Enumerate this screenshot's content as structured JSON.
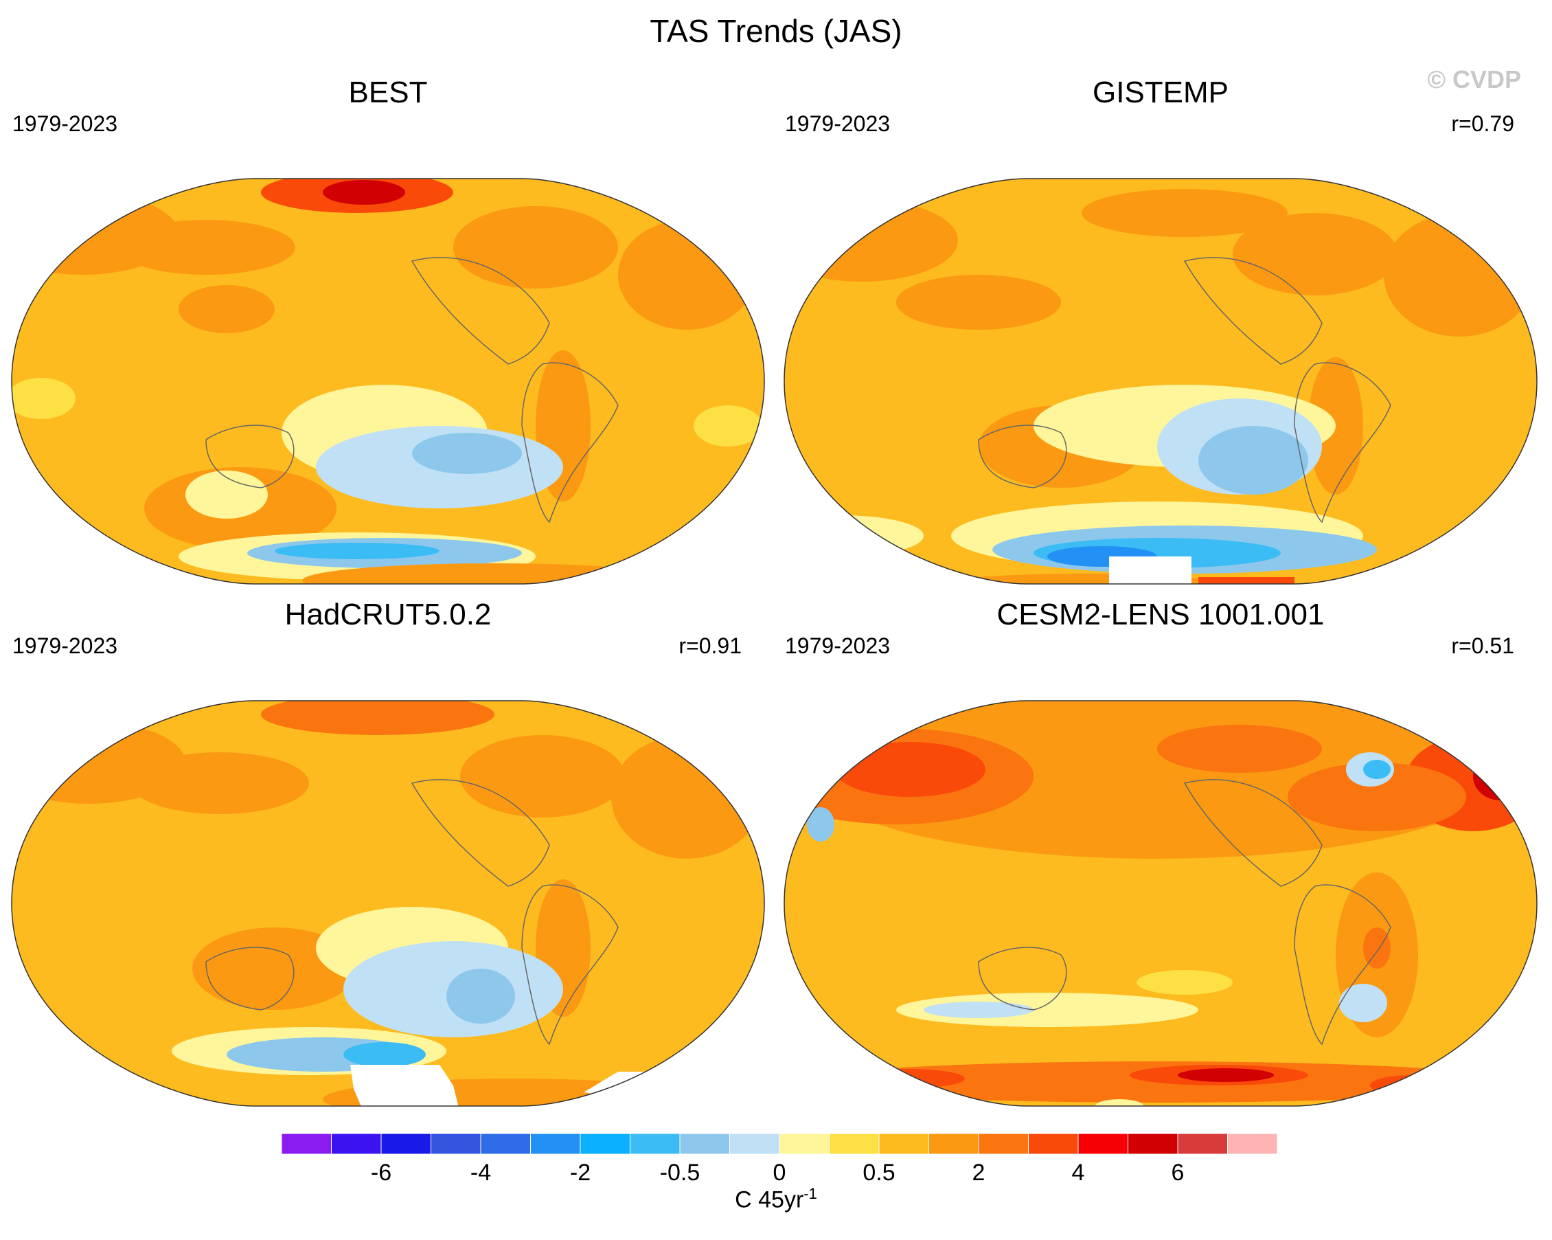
{
  "title": "TAS Trends (JAS)",
  "copyright": "© CVDP",
  "colors": {
    "ocean_base": "#fdbb20",
    "land_outline": "#666666",
    "map_border": "#333333"
  },
  "panels": [
    {
      "title": "BEST",
      "period": "1979-2023",
      "corr": ""
    },
    {
      "title": "GISTEMP",
      "period": "1979-2023",
      "corr": "r=0.79"
    },
    {
      "title": "HadCRUT5.0.2",
      "period": "1979-2023",
      "corr": "r=0.91"
    },
    {
      "title": "CESM2-LENS 1001.001",
      "period": "1979-2023",
      "corr": "r=0.51"
    }
  ],
  "colorbar": {
    "colors": [
      "#8a1cf0",
      "#3b13f0",
      "#1a1ae6",
      "#3355e0",
      "#2f6de8",
      "#2290f5",
      "#0aafff",
      "#3bbcf5",
      "#8dc8ec",
      "#bfe0f5",
      "#fff59a",
      "#fde044",
      "#fdbb20",
      "#fb9a12",
      "#fa7510",
      "#f94a0a",
      "#f70005",
      "#d10003",
      "#d93a3a",
      "#ffb4b4"
    ],
    "labels": [
      "-6",
      "-4",
      "-2",
      "-0.5",
      "0",
      "0.5",
      "2",
      "4",
      "6"
    ],
    "label_positions": [
      2,
      4,
      6,
      8,
      10,
      12,
      14,
      16,
      18
    ],
    "units": "C 45yr",
    "units_sup": "-1"
  }
}
